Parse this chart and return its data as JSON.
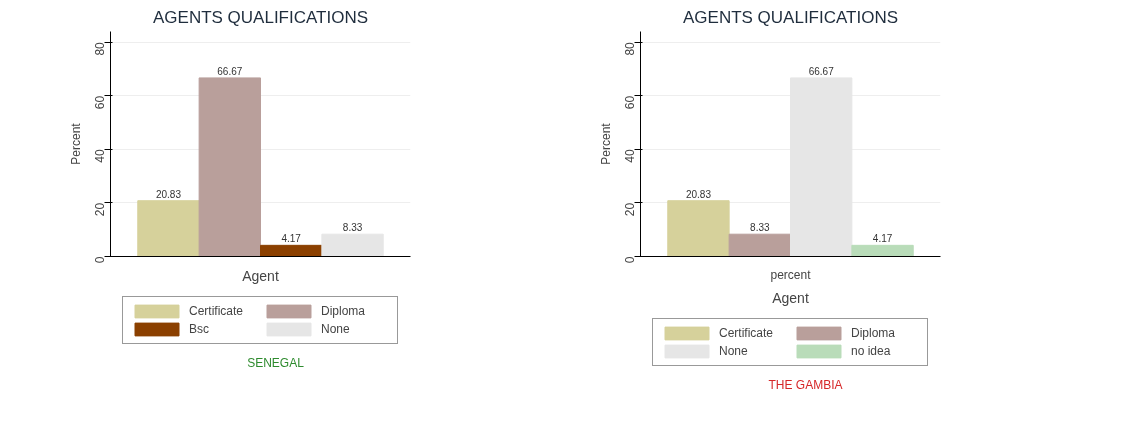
{
  "chart_data": [
    {
      "type": "bar",
      "title": "AGENTS QUALIFICATIONS",
      "xlabel": "Agent",
      "ylabel": "Percent",
      "categories": [
        null
      ],
      "ylim": [
        0,
        84
      ],
      "yticks": [
        0,
        20,
        40,
        60,
        80
      ],
      "grid": "y",
      "legend": "bottom",
      "data_labels": true,
      "annotations": [
        "SENEGAL"
      ],
      "series": [
        {
          "name": "Certificate",
          "color": "#d6d19b",
          "values": [
            20.83
          ]
        },
        {
          "name": "Diploma",
          "color": "#b99f9b",
          "values": [
            66.67
          ]
        },
        {
          "name": "Bsc",
          "color": "#8b4000",
          "values": [
            4.17
          ]
        },
        {
          "name": "None",
          "color": "#e6e6e6",
          "values": [
            8.33
          ]
        }
      ]
    },
    {
      "type": "bar",
      "title": "AGENTS QUALIFICATIONS",
      "xlabel": "Agent",
      "ylabel": "Percent",
      "categories": [
        "percent"
      ],
      "ylim": [
        0,
        84
      ],
      "yticks": [
        0,
        20,
        40,
        60,
        80
      ],
      "grid": "y",
      "legend": "bottom",
      "data_labels": true,
      "annotations": [
        "THE GAMBIA"
      ],
      "series": [
        {
          "name": "Certificate",
          "color": "#d6d19b",
          "values": [
            20.83
          ]
        },
        {
          "name": "Diploma",
          "color": "#b99f9b",
          "values": [
            8.33
          ]
        },
        {
          "name": "None",
          "color": "#e6e6e6",
          "values": [
            66.67
          ]
        },
        {
          "name": "no idea",
          "color": "#b9dcb9",
          "values": [
            4.17
          ]
        }
      ]
    }
  ]
}
